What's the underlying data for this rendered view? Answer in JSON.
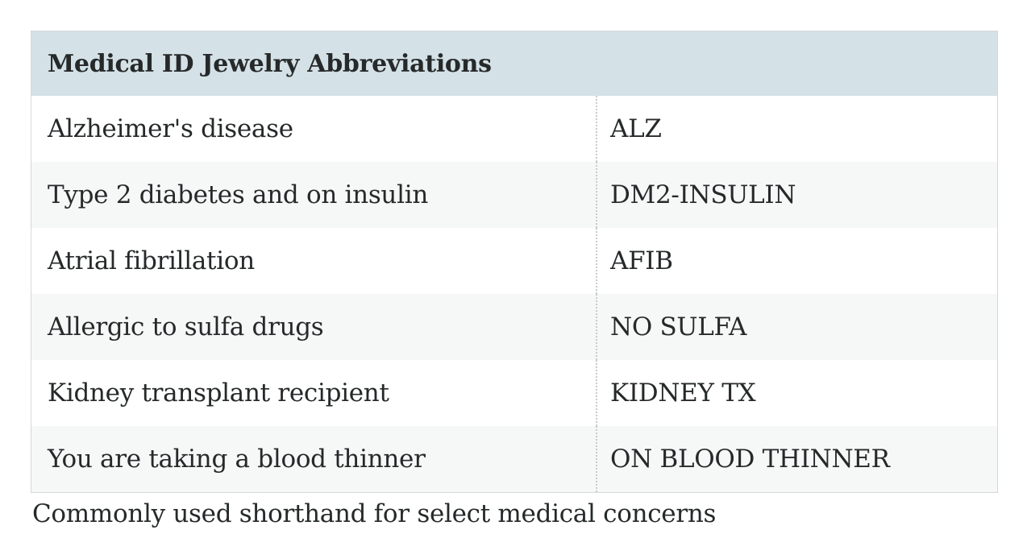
{
  "table": {
    "title": "Medical ID Jewelry Abbreviations",
    "rows": [
      {
        "condition": "Alzheimer's disease",
        "abbreviation": "ALZ"
      },
      {
        "condition": "Type 2 diabetes and on insulin",
        "abbreviation": "DM2-INSULIN"
      },
      {
        "condition": "Atrial fibrillation",
        "abbreviation": "AFIB"
      },
      {
        "condition": "Allergic to sulfa drugs",
        "abbreviation": "NO SULFA"
      },
      {
        "condition": "Kidney transplant recipient",
        "abbreviation": "KIDNEY TX"
      },
      {
        "condition": "You are taking a blood thinner",
        "abbreviation": "ON BLOOD THINNER"
      }
    ],
    "caption": "Commonly used shorthand for select medical concerns",
    "colors": {
      "header_bg": "#d4e1e6",
      "alt_row_bg": "#f6f7f7",
      "border": "#d5d8d8",
      "divider": "#c8cccc",
      "text": "#26292a"
    }
  }
}
